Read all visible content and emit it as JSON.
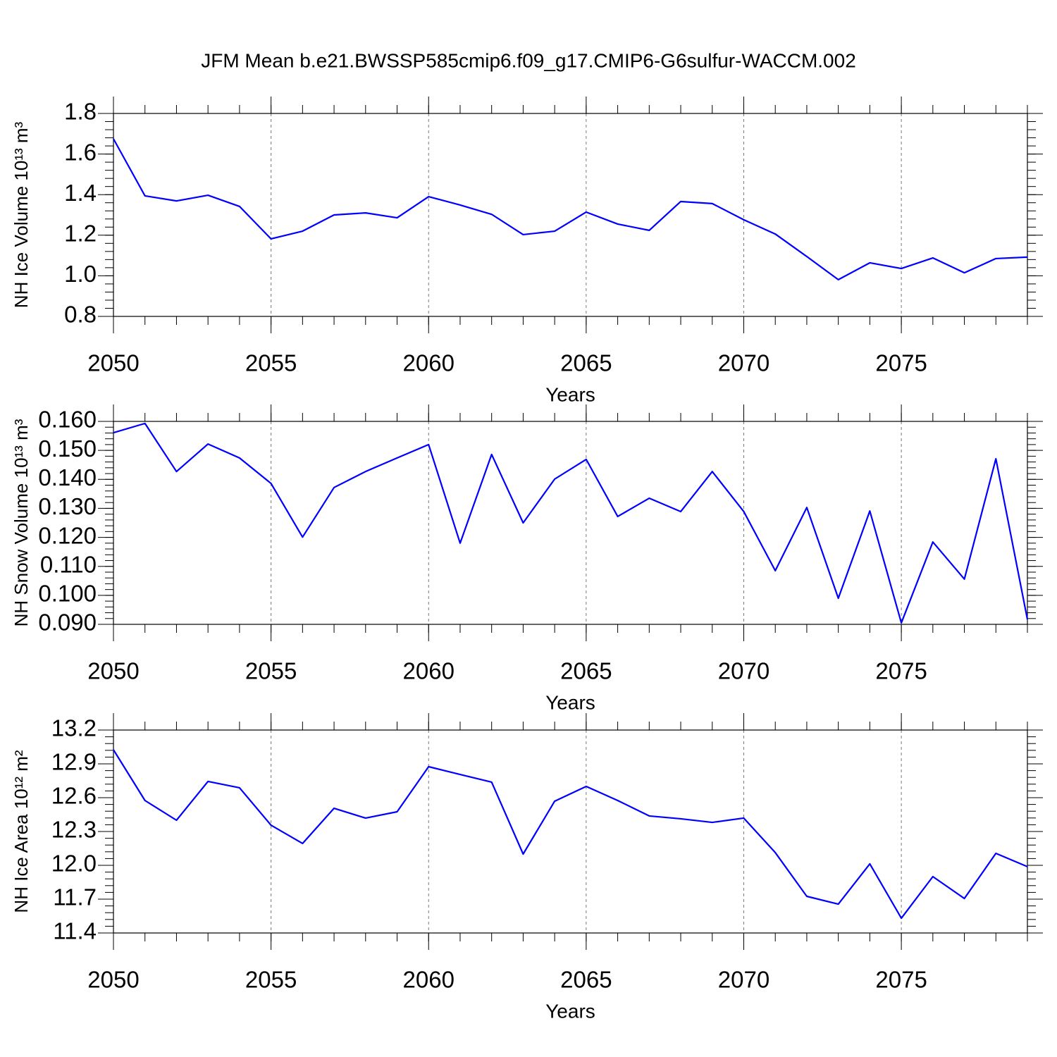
{
  "chart_data": [
    {
      "type": "line",
      "title": "JFM Mean b.e21.BWSSP585cmip6.f09_g17.CMIP6-G6sulfur-WACCM.002",
      "xlabel": "Years",
      "ylabel": "NH Ice Volume 10¹³ m³",
      "color": "#0000ff",
      "grid": "x",
      "x": [
        2050,
        2051,
        2052,
        2053,
        2054,
        2055,
        2056,
        2057,
        2058,
        2059,
        2060,
        2061,
        2062,
        2063,
        2064,
        2065,
        2066,
        2067,
        2068,
        2069,
        2070,
        2071,
        2072,
        2073,
        2074,
        2075,
        2076,
        2077,
        2078,
        2079
      ],
      "values": [
        1.675,
        1.394,
        1.369,
        1.397,
        1.342,
        1.182,
        1.22,
        1.3,
        1.31,
        1.286,
        1.39,
        1.349,
        1.303,
        1.203,
        1.22,
        1.314,
        1.255,
        1.224,
        1.366,
        1.356,
        1.276,
        1.206,
        1.095,
        0.981,
        1.064,
        1.036,
        1.088,
        1.015,
        1.085,
        1.092
      ],
      "xlim": [
        2050,
        2079
      ],
      "xticks": [
        2050,
        2055,
        2060,
        2065,
        2070,
        2075
      ],
      "ylim": [
        0.8,
        1.8
      ],
      "yticks": [
        0.8,
        {
          "value": 1,
          "label": "1.0"
        },
        1.2,
        1.4,
        1.6,
        1.8
      ]
    },
    {
      "type": "line",
      "xlabel": "Years",
      "ylabel": "NH Snow Volume 10¹³ m³",
      "color": "#0000ff",
      "grid": "x",
      "x": [
        2050,
        2051,
        2052,
        2053,
        2054,
        2055,
        2056,
        2057,
        2058,
        2059,
        2060,
        2061,
        2062,
        2063,
        2064,
        2065,
        2066,
        2067,
        2068,
        2069,
        2070,
        2071,
        2072,
        2073,
        2074,
        2075,
        2076,
        2077,
        2078,
        2079
      ],
      "values": [
        0.1561,
        0.1593,
        0.1427,
        0.1522,
        0.1474,
        0.1386,
        0.1201,
        0.1372,
        0.1427,
        0.1474,
        0.152,
        0.118,
        0.1486,
        0.125,
        0.1401,
        0.1469,
        0.1272,
        0.1335,
        0.1289,
        0.1427,
        0.1289,
        0.1085,
        0.1303,
        0.099,
        0.1291,
        0.0905,
        0.1184,
        0.1056,
        0.1471,
        0.0917
      ],
      "xlim": [
        2050,
        2079
      ],
      "xticks": [
        2050,
        2055,
        2060,
        2065,
        2070,
        2075
      ],
      "ylim": [
        0.09,
        0.16
      ],
      "yticks": [
        {
          "value": 0.09,
          "label": "0.090"
        },
        {
          "value": 0.1,
          "label": "0.100"
        },
        {
          "value": 0.11,
          "label": "0.110"
        },
        {
          "value": 0.12,
          "label": "0.120"
        },
        {
          "value": 0.13,
          "label": "0.130"
        },
        {
          "value": 0.14,
          "label": "0.140"
        },
        {
          "value": 0.15,
          "label": "0.150"
        },
        {
          "value": 0.16,
          "label": "0.160"
        }
      ]
    },
    {
      "type": "line",
      "xlabel": "Years",
      "ylabel": "NH Ice Area 10¹² m²",
      "color": "#0000ff",
      "grid": "x",
      "x": [
        2050,
        2051,
        2052,
        2053,
        2054,
        2055,
        2056,
        2057,
        2058,
        2059,
        2060,
        2061,
        2062,
        2063,
        2064,
        2065,
        2066,
        2067,
        2068,
        2069,
        2070,
        2071,
        2072,
        2073,
        2074,
        2075,
        2076,
        2077,
        2078,
        2079
      ],
      "values": [
        13.025,
        12.575,
        12.4,
        12.744,
        12.688,
        12.356,
        12.194,
        12.506,
        12.419,
        12.475,
        12.875,
        12.806,
        12.738,
        12.1,
        12.569,
        12.7,
        12.575,
        12.438,
        12.413,
        12.381,
        12.419,
        12.113,
        11.725,
        11.656,
        12.013,
        11.531,
        11.9,
        11.706,
        12.106,
        11.988
      ],
      "xlim": [
        2050,
        2079
      ],
      "xticks": [
        2050,
        2055,
        2060,
        2065,
        2070,
        2075
      ],
      "ylim": [
        11.4,
        13.2
      ],
      "yticks": [
        11.4,
        11.7,
        {
          "value": 12,
          "label": "12.0"
        },
        12.3,
        12.6,
        12.9,
        13.2
      ]
    }
  ]
}
